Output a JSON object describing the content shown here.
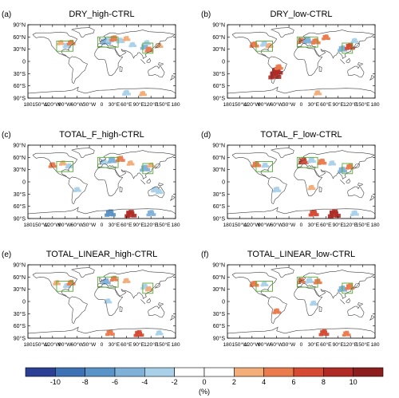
{
  "chart_data": {
    "type": "heatmap",
    "panels": [
      {
        "tag": "(a)",
        "title": "DRY_high-CTRL",
        "anomalies": [
          {
            "lon": -100,
            "lat": 45,
            "value": 3
          },
          {
            "lon": -85,
            "lat": 38,
            "value": -4
          },
          {
            "lon": -75,
            "lat": 45,
            "value": 4
          },
          {
            "lon": 10,
            "lat": 48,
            "value": -6
          },
          {
            "lon": 20,
            "lat": 52,
            "value": -4
          },
          {
            "lon": 30,
            "lat": 55,
            "value": 5
          },
          {
            "lon": 45,
            "lat": 50,
            "value": -4
          },
          {
            "lon": 60,
            "lat": 55,
            "value": 3
          },
          {
            "lon": 75,
            "lat": 40,
            "value": -3
          },
          {
            "lon": 105,
            "lat": 35,
            "value": -5
          },
          {
            "lon": 115,
            "lat": 28,
            "value": 4
          },
          {
            "lon": 110,
            "lat": 45,
            "value": -3
          },
          {
            "lon": 140,
            "lat": 38,
            "value": 3
          },
          {
            "lon": 60,
            "lat": -78,
            "value": -4
          },
          {
            "lon": 100,
            "lat": -80,
            "value": 3
          }
        ]
      },
      {
        "tag": "(b)",
        "title": "DRY_low-CTRL",
        "anomalies": [
          {
            "lon": -115,
            "lat": 40,
            "value": 5
          },
          {
            "lon": -90,
            "lat": 42,
            "value": -4
          },
          {
            "lon": -78,
            "lat": 38,
            "value": 3
          },
          {
            "lon": -60,
            "lat": -25,
            "value": 8
          },
          {
            "lon": -65,
            "lat": -35,
            "value": 9
          },
          {
            "lon": -55,
            "lat": -15,
            "value": 4
          },
          {
            "lon": 0,
            "lat": 50,
            "value": 4
          },
          {
            "lon": 15,
            "lat": 50,
            "value": -6
          },
          {
            "lon": 35,
            "lat": 48,
            "value": 5
          },
          {
            "lon": 60,
            "lat": 58,
            "value": 4
          },
          {
            "lon": 100,
            "lat": 30,
            "value": -5
          },
          {
            "lon": 118,
            "lat": 35,
            "value": 6
          },
          {
            "lon": 130,
            "lat": 50,
            "value": -3
          },
          {
            "lon": 40,
            "lat": -78,
            "value": 3
          }
        ]
      },
      {
        "tag": "(c)",
        "title": "TOTAL_F_high-CTRL",
        "anomalies": [
          {
            "lon": -120,
            "lat": 40,
            "value": 4
          },
          {
            "lon": -95,
            "lat": 45,
            "value": 3
          },
          {
            "lon": -80,
            "lat": 38,
            "value": -3
          },
          {
            "lon": -60,
            "lat": -20,
            "value": -3
          },
          {
            "lon": 5,
            "lat": 48,
            "value": -4
          },
          {
            "lon": 25,
            "lat": 52,
            "value": -5
          },
          {
            "lon": 45,
            "lat": 55,
            "value": 5
          },
          {
            "lon": 70,
            "lat": 45,
            "value": 3
          },
          {
            "lon": 105,
            "lat": 32,
            "value": -6
          },
          {
            "lon": 120,
            "lat": 40,
            "value": 3
          },
          {
            "lon": 140,
            "lat": -25,
            "value": -3
          },
          {
            "lon": 130,
            "lat": -20,
            "value": -4
          },
          {
            "lon": 20,
            "lat": -78,
            "value": -7
          },
          {
            "lon": 70,
            "lat": -80,
            "value": 8
          },
          {
            "lon": 120,
            "lat": -78,
            "value": -5
          }
        ]
      },
      {
        "tag": "(d)",
        "title": "TOTAL_F_low-CTRL",
        "anomalies": [
          {
            "lon": -110,
            "lat": 42,
            "value": 5
          },
          {
            "lon": -88,
            "lat": 40,
            "value": -3
          },
          {
            "lon": -60,
            "lat": -20,
            "value": -4
          },
          {
            "lon": 5,
            "lat": 50,
            "value": 6
          },
          {
            "lon": 25,
            "lat": 52,
            "value": -4
          },
          {
            "lon": 50,
            "lat": 48,
            "value": 5
          },
          {
            "lon": 75,
            "lat": 45,
            "value": -3
          },
          {
            "lon": 100,
            "lat": 28,
            "value": -5
          },
          {
            "lon": 118,
            "lat": 36,
            "value": 4
          },
          {
            "lon": 25,
            "lat": -15,
            "value": 3
          },
          {
            "lon": 30,
            "lat": -78,
            "value": 6
          },
          {
            "lon": 80,
            "lat": -80,
            "value": 9
          },
          {
            "lon": 130,
            "lat": -78,
            "value": -4
          }
        ]
      },
      {
        "tag": "(e)",
        "title": "TOTAL_LINEAR_high-CTRL",
        "anomalies": [
          {
            "lon": -110,
            "lat": 45,
            "value": 3
          },
          {
            "lon": -85,
            "lat": 38,
            "value": -3
          },
          {
            "lon": -75,
            "lat": 45,
            "value": 4
          },
          {
            "lon": 10,
            "lat": 48,
            "value": -5
          },
          {
            "lon": 30,
            "lat": 55,
            "value": 4
          },
          {
            "lon": 60,
            "lat": 50,
            "value": 3
          },
          {
            "lon": 105,
            "lat": 35,
            "value": -4
          },
          {
            "lon": 115,
            "lat": 30,
            "value": 3
          },
          {
            "lon": 15,
            "lat": 0,
            "value": -3
          },
          {
            "lon": 20,
            "lat": -78,
            "value": 5
          },
          {
            "lon": 90,
            "lat": -80,
            "value": 6
          },
          {
            "lon": 140,
            "lat": -78,
            "value": -3
          }
        ]
      },
      {
        "tag": "(f)",
        "title": "TOTAL_LINEAR_low-CTRL",
        "anomalies": [
          {
            "lon": -115,
            "lat": 42,
            "value": 5
          },
          {
            "lon": -90,
            "lat": 42,
            "value": -3
          },
          {
            "lon": -60,
            "lat": -25,
            "value": 4
          },
          {
            "lon": 0,
            "lat": 50,
            "value": 4
          },
          {
            "lon": 20,
            "lat": 50,
            "value": -4
          },
          {
            "lon": 40,
            "lat": 48,
            "value": 4
          },
          {
            "lon": 100,
            "lat": 30,
            "value": -5
          },
          {
            "lon": 118,
            "lat": 35,
            "value": 5
          },
          {
            "lon": 30,
            "lat": -5,
            "value": -3
          },
          {
            "lon": 55,
            "lat": -78,
            "value": 6
          },
          {
            "lon": 110,
            "lat": -80,
            "value": 4
          }
        ]
      }
    ],
    "x_tick_labels": [
      "180",
      "150°W",
      "120°W",
      "90°W",
      "60°W",
      "30°W",
      "0",
      "30°E",
      "60°E",
      "90°E",
      "120°E",
      "150°E",
      "180"
    ],
    "x_tick_values": [
      -180,
      -150,
      -120,
      -90,
      -60,
      -30,
      0,
      30,
      60,
      90,
      120,
      150,
      180
    ],
    "y_tick_labels": [
      "90°N",
      "60°N",
      "30°N",
      "0",
      "30°S",
      "60°S",
      "90°S"
    ],
    "y_tick_values": [
      90,
      60,
      30,
      0,
      -30,
      -60,
      -90
    ],
    "xlim": [
      -180,
      180
    ],
    "ylim": [
      -90,
      90
    ],
    "regions": [
      {
        "lon": [
          -110,
          -70
        ],
        "lat": [
          25,
          50
        ]
      },
      {
        "lon": [
          -10,
          40
        ],
        "lat": [
          35,
          60
        ]
      },
      {
        "lon": [
          100,
          125
        ],
        "lat": [
          20,
          45
        ]
      }
    ],
    "colorbar": {
      "levels": [
        -10,
        -8,
        -6,
        -4,
        -2,
        0,
        2,
        4,
        6,
        8,
        10
      ],
      "tick_labels": [
        "-10",
        "-8",
        "-6",
        "-4",
        "-2",
        "0",
        "2",
        "4",
        "6",
        "8",
        "10"
      ],
      "colors": [
        "#2b3f95",
        "#3e72b5",
        "#5a93c7",
        "#7fb1d9",
        "#a9d0e9",
        "#ffffff",
        "#ffffff",
        "#f2ad78",
        "#ea7b4d",
        "#d64a34",
        "#b02b26",
        "#8c1f1e"
      ],
      "unit": "(%)"
    },
    "colors": {
      "coast": "#444444",
      "region_box": "#55aa33"
    }
  }
}
